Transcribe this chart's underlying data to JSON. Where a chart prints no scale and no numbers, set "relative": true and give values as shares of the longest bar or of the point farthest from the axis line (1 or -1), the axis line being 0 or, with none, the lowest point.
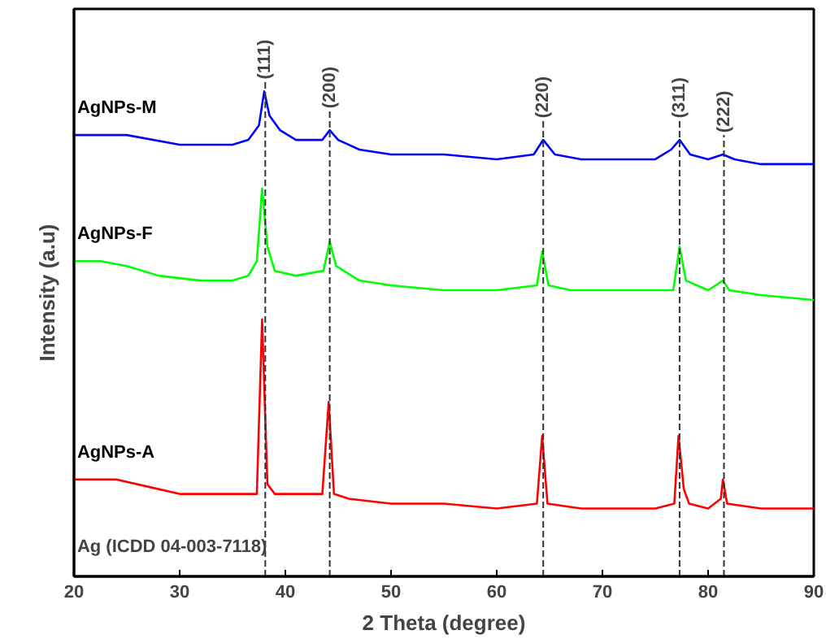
{
  "chart_data": {
    "type": "line",
    "relative": true,
    "xlabel": "2 Theta (degree)",
    "ylabel": "Intensity (a.u)",
    "xlim": [
      20,
      90
    ],
    "xticks": [
      20,
      30,
      40,
      50,
      60,
      70,
      80,
      90
    ],
    "grid": false,
    "series": [
      {
        "name": "AgNPs-M",
        "color": "#0000ff",
        "x": [
          20,
          25,
          30,
          35,
          36.5,
          37.5,
          38.0,
          38.5,
          39.5,
          41,
          43.5,
          44.2,
          45,
          47,
          50,
          55,
          60,
          63.5,
          64.4,
          65.5,
          68,
          72,
          75,
          76.5,
          77.3,
          78.3,
          80,
          81.4,
          82.5,
          85,
          90
        ],
        "values": [
          0.91,
          0.91,
          0.89,
          0.89,
          0.9,
          0.93,
          1.0,
          0.95,
          0.92,
          0.9,
          0.9,
          0.92,
          0.9,
          0.88,
          0.87,
          0.87,
          0.86,
          0.87,
          0.9,
          0.87,
          0.86,
          0.86,
          0.86,
          0.88,
          0.9,
          0.87,
          0.86,
          0.87,
          0.86,
          0.85,
          0.85
        ]
      },
      {
        "name": "AgNPs-F",
        "color": "#00ff00",
        "x": [
          20,
          22.5,
          25,
          28,
          32,
          35,
          36.5,
          37.3,
          37.8,
          38.3,
          39,
          41,
          43.6,
          44.2,
          44.8,
          47,
          50,
          55,
          60,
          63.8,
          64.3,
          64.9,
          67,
          72,
          76.7,
          77.3,
          77.9,
          80,
          81.4,
          82,
          85,
          90
        ],
        "values": [
          0.65,
          0.65,
          0.64,
          0.62,
          0.61,
          0.61,
          0.62,
          0.65,
          0.8,
          0.68,
          0.63,
          0.62,
          0.63,
          0.69,
          0.64,
          0.61,
          0.6,
          0.59,
          0.59,
          0.6,
          0.67,
          0.6,
          0.59,
          0.59,
          0.59,
          0.68,
          0.61,
          0.59,
          0.61,
          0.59,
          0.58,
          0.57
        ]
      },
      {
        "name": "AgNPs-A",
        "color": "#ff0000",
        "x": [
          20,
          24,
          28,
          30,
          35,
          37.3,
          37.8,
          38.3,
          39,
          43.5,
          44.1,
          44.6,
          46,
          50,
          55,
          60,
          63.8,
          64.3,
          64.8,
          68,
          75,
          76.8,
          77.2,
          77.7,
          78.2,
          80,
          81.2,
          81.4,
          81.8,
          85,
          90
        ],
        "values": [
          0.2,
          0.2,
          0.18,
          0.17,
          0.17,
          0.17,
          0.53,
          0.19,
          0.17,
          0.17,
          0.36,
          0.17,
          0.16,
          0.15,
          0.15,
          0.14,
          0.15,
          0.29,
          0.15,
          0.14,
          0.14,
          0.15,
          0.29,
          0.18,
          0.15,
          0.14,
          0.16,
          0.2,
          0.15,
          0.14,
          0.14
        ]
      }
    ],
    "ref_lines": [
      {
        "axis": "x",
        "value": 38.1,
        "color": "#333333",
        "line_style": "dashed"
      },
      {
        "axis": "x",
        "value": 44.2,
        "color": "#333333",
        "line_style": "dashed"
      },
      {
        "axis": "x",
        "value": 64.4,
        "color": "#333333",
        "line_style": "dashed"
      },
      {
        "axis": "x",
        "value": 77.3,
        "color": "#333333",
        "line_style": "dashed"
      },
      {
        "axis": "x",
        "value": 81.5,
        "color": "#333333",
        "line_style": "dashed"
      }
    ],
    "annotations": [
      "Ag (ICDD 04-003-7118)",
      {
        "text": "(111)",
        "x": 38.1,
        "y": 1.02
      },
      {
        "text": "(200)",
        "x": 44.2,
        "y": 0.96
      },
      {
        "text": "(220)",
        "x": 64.4,
        "y": 0.94
      },
      {
        "text": "(311)",
        "x": 77.3,
        "y": 0.94
      },
      {
        "text": "(222)",
        "x": 81.5,
        "y": 0.91
      }
    ]
  }
}
